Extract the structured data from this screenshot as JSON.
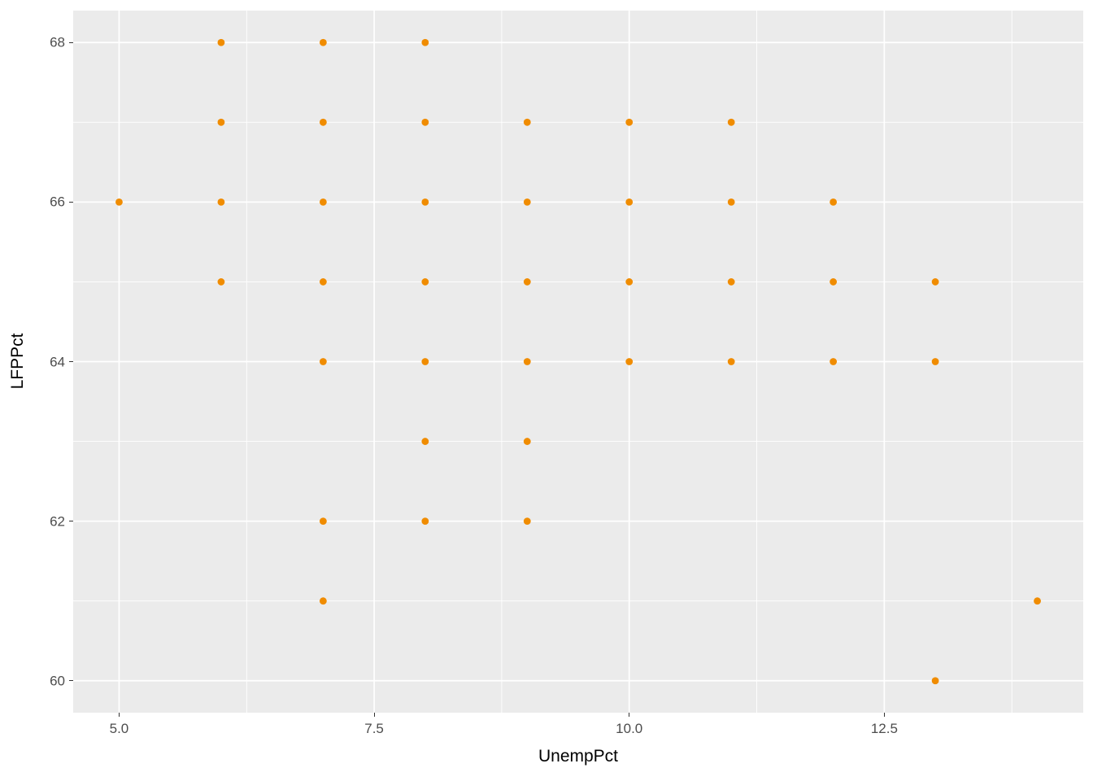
{
  "chart_data": {
    "type": "scatter",
    "title": "",
    "xlabel": "UnempPct",
    "ylabel": "LFPPct",
    "xlim": [
      4.55,
      14.45
    ],
    "ylim": [
      59.6,
      68.4
    ],
    "x_ticks": [
      5.0,
      7.5,
      10.0,
      12.5
    ],
    "x_tick_labels": [
      "5.0",
      "7.5",
      "10.0",
      "12.5"
    ],
    "x_minor_ticks": [
      6.25,
      8.75,
      11.25,
      13.75
    ],
    "y_ticks": [
      60,
      62,
      64,
      66,
      68
    ],
    "y_tick_labels": [
      "60",
      "62",
      "64",
      "66",
      "68"
    ],
    "y_minor_ticks": [
      61,
      63,
      65,
      67
    ],
    "legend": null,
    "grid": "on",
    "panel_bg": "#EBEBEB",
    "grid_color": "#FFFFFF",
    "point_color": "#F08C00",
    "point_radius": 4.4,
    "points": [
      [
        5,
        66
      ],
      [
        6,
        68
      ],
      [
        6,
        67
      ],
      [
        6,
        66
      ],
      [
        6,
        65
      ],
      [
        7,
        68
      ],
      [
        7,
        67
      ],
      [
        7,
        66
      ],
      [
        7,
        65
      ],
      [
        7,
        64
      ],
      [
        7,
        62
      ],
      [
        7,
        61
      ],
      [
        8,
        68
      ],
      [
        8,
        67
      ],
      [
        8,
        66
      ],
      [
        8,
        65
      ],
      [
        8,
        64
      ],
      [
        8,
        63
      ],
      [
        8,
        62
      ],
      [
        9,
        67
      ],
      [
        9,
        66
      ],
      [
        9,
        65
      ],
      [
        9,
        64
      ],
      [
        9,
        63
      ],
      [
        9,
        62
      ],
      [
        10,
        67
      ],
      [
        10,
        66
      ],
      [
        10,
        65
      ],
      [
        10,
        64
      ],
      [
        11,
        67
      ],
      [
        11,
        66
      ],
      [
        11,
        65
      ],
      [
        11,
        64
      ],
      [
        12,
        66
      ],
      [
        12,
        65
      ],
      [
        12,
        64
      ],
      [
        13,
        65
      ],
      [
        13,
        64
      ],
      [
        13,
        60
      ],
      [
        14,
        61
      ]
    ]
  }
}
